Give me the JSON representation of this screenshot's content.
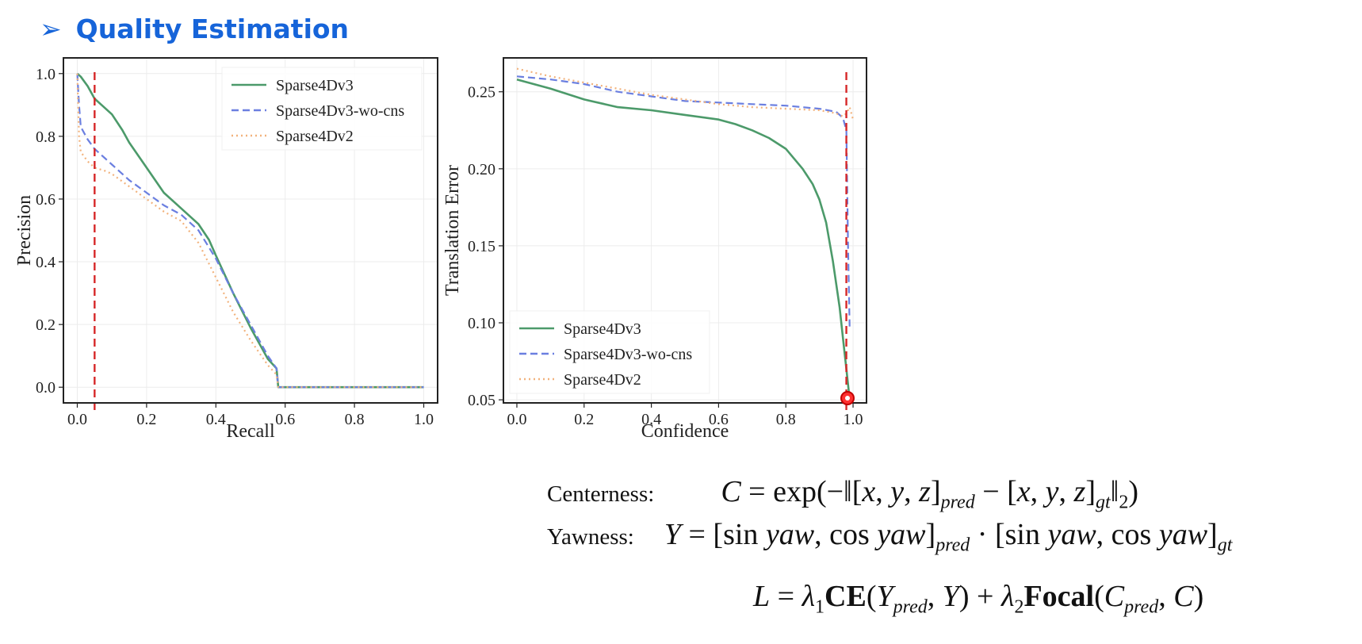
{
  "slide": {
    "title": "Quality Estimation",
    "title_color": "#1664d9",
    "arrow_glyph": "➢"
  },
  "colors": {
    "sparse4dv3": "#4c9a6a",
    "wo_cns": "#6b7fe0",
    "sparse4dv2": "#f2b27c",
    "threshold": "#d62728"
  },
  "chart_data": [
    {
      "type": "line",
      "name": "precision-recall",
      "xlabel": "Recall",
      "ylabel": "Precision",
      "xlim": [
        -0.04,
        1.04
      ],
      "ylim": [
        -0.05,
        1.05
      ],
      "xticks": [
        0.0,
        0.2,
        0.4,
        0.6,
        0.8,
        1.0
      ],
      "yticks": [
        0.0,
        0.2,
        0.4,
        0.6,
        0.8,
        1.0
      ],
      "tick_labels_x": [
        "0.0",
        "0.2",
        "0.4",
        "0.6",
        "0.8",
        "1.0"
      ],
      "tick_labels_y": [
        "0.0",
        "0.2",
        "0.4",
        "0.6",
        "0.8",
        "1.0"
      ],
      "grid": true,
      "legend_position": "top-right",
      "threshold_x": 0.05,
      "series": [
        {
          "name": "Sparse4Dv3",
          "style": "solid",
          "color_key": "sparse4dv3",
          "x": [
            0.0,
            0.01,
            0.03,
            0.05,
            0.07,
            0.1,
            0.13,
            0.15,
            0.2,
            0.25,
            0.3,
            0.35,
            0.38,
            0.4,
            0.45,
            0.5,
            0.55,
            0.575,
            0.58,
            0.6,
            0.8,
            1.0
          ],
          "y": [
            1.0,
            0.99,
            0.96,
            0.92,
            0.9,
            0.87,
            0.82,
            0.78,
            0.7,
            0.62,
            0.57,
            0.52,
            0.47,
            0.42,
            0.3,
            0.19,
            0.09,
            0.06,
            0.0,
            0.0,
            0.0,
            0.0
          ]
        },
        {
          "name": "Sparse4Dv3-wo-cns",
          "style": "dashed",
          "color_key": "wo_cns",
          "x": [
            0.0,
            0.005,
            0.01,
            0.03,
            0.05,
            0.08,
            0.1,
            0.15,
            0.2,
            0.25,
            0.3,
            0.35,
            0.4,
            0.45,
            0.5,
            0.55,
            0.575,
            0.58,
            0.6,
            0.8,
            1.0
          ],
          "y": [
            1.0,
            0.9,
            0.83,
            0.79,
            0.76,
            0.73,
            0.71,
            0.66,
            0.62,
            0.58,
            0.55,
            0.5,
            0.41,
            0.3,
            0.2,
            0.1,
            0.06,
            0.0,
            0.0,
            0.0,
            0.0
          ]
        },
        {
          "name": "Sparse4Dv2",
          "style": "dotted",
          "color_key": "sparse4dv2",
          "x": [
            0.0,
            0.005,
            0.01,
            0.03,
            0.05,
            0.08,
            0.1,
            0.15,
            0.2,
            0.25,
            0.3,
            0.35,
            0.4,
            0.45,
            0.5,
            0.55,
            0.575,
            0.58,
            0.6,
            0.8,
            1.0
          ],
          "y": [
            1.0,
            0.8,
            0.75,
            0.72,
            0.7,
            0.69,
            0.68,
            0.64,
            0.6,
            0.56,
            0.53,
            0.46,
            0.35,
            0.24,
            0.15,
            0.07,
            0.04,
            0.0,
            0.0,
            0.0,
            0.0
          ]
        }
      ]
    },
    {
      "type": "line",
      "name": "translation-confidence",
      "xlabel": "Confidence",
      "ylabel": "Translation Error",
      "xlim": [
        -0.04,
        1.04
      ],
      "ylim": [
        0.048,
        0.272
      ],
      "xticks": [
        0.0,
        0.2,
        0.4,
        0.6,
        0.8,
        1.0
      ],
      "yticks": [
        0.05,
        0.1,
        0.15,
        0.2,
        0.25
      ],
      "tick_labels_x": [
        "0.0",
        "0.2",
        "0.4",
        "0.6",
        "0.8",
        "1.0"
      ],
      "tick_labels_y": [
        "0.05",
        "0.10",
        "0.15",
        "0.20",
        "0.25"
      ],
      "grid": true,
      "legend_position": "bottom-left",
      "threshold_x": 0.98,
      "series": [
        {
          "name": "Sparse4Dv3",
          "style": "solid",
          "color_key": "sparse4dv3",
          "x": [
            0.0,
            0.05,
            0.1,
            0.2,
            0.3,
            0.4,
            0.5,
            0.6,
            0.65,
            0.7,
            0.75,
            0.8,
            0.85,
            0.88,
            0.9,
            0.92,
            0.94,
            0.96,
            0.97,
            0.98,
            0.99
          ],
          "y": [
            0.258,
            0.255,
            0.252,
            0.245,
            0.24,
            0.238,
            0.235,
            0.232,
            0.229,
            0.225,
            0.22,
            0.213,
            0.2,
            0.19,
            0.18,
            0.165,
            0.14,
            0.11,
            0.09,
            0.07,
            0.05
          ]
        },
        {
          "name": "Sparse4Dv3-wo-cns",
          "style": "dashed",
          "color_key": "wo_cns",
          "x": [
            0.0,
            0.1,
            0.2,
            0.3,
            0.4,
            0.5,
            0.6,
            0.7,
            0.8,
            0.9,
            0.95,
            0.97,
            0.98,
            0.985,
            0.99
          ],
          "y": [
            0.26,
            0.258,
            0.255,
            0.25,
            0.247,
            0.244,
            0.243,
            0.242,
            0.241,
            0.239,
            0.237,
            0.233,
            0.225,
            0.15,
            0.095
          ]
        },
        {
          "name": "Sparse4Dv2",
          "style": "dotted",
          "color_key": "sparse4dv2",
          "x": [
            0.0,
            0.1,
            0.2,
            0.3,
            0.4,
            0.5,
            0.6,
            0.7,
            0.8,
            0.9,
            0.95,
            0.97,
            0.98,
            0.99,
            1.0
          ],
          "y": [
            0.265,
            0.26,
            0.256,
            0.252,
            0.248,
            0.245,
            0.242,
            0.24,
            0.239,
            0.238,
            0.236,
            0.234,
            0.236,
            0.24,
            0.232
          ]
        }
      ]
    }
  ],
  "formulas": {
    "centerness_label": "Centerness:",
    "yawness_label": "Yawness:"
  }
}
